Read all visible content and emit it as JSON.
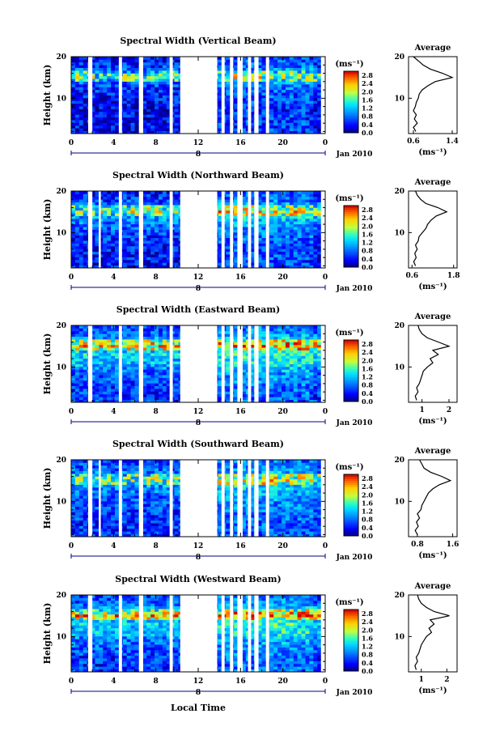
{
  "figure": {
    "date_label": "Jan 2010",
    "day_label": "8",
    "xlabel": "Local Time",
    "unit_label": "(ms⁻¹)",
    "panel_ylabel": "Height (km)",
    "avg_title": "Average",
    "avg_xlabel": "(ms⁻¹)"
  },
  "chart_data": [
    {
      "type": "heatmap",
      "title": "Spectral Width (Vertical Beam)",
      "ylabel": "Height (km)",
      "xlabel": "Local Time",
      "x_ticks": [
        "0",
        "4",
        "8",
        "12",
        "16",
        "20",
        "0"
      ],
      "x_range": [
        0,
        24
      ],
      "y_ticks": [
        "10",
        "20"
      ],
      "y_range": [
        1.5,
        20
      ],
      "colorbar": {
        "label": "(ms⁻¹)",
        "ticks": [
          "0.0",
          "0.4",
          "0.8",
          "1.2",
          "1.6",
          "2.0",
          "2.4",
          "2.8"
        ],
        "range": [
          0,
          3.0
        ]
      },
      "data_gaps_hours": [
        [
          1.6,
          2.0
        ],
        [
          4.5,
          4.8
        ],
        [
          6.4,
          6.8
        ],
        [
          9.3,
          9.6
        ],
        [
          10.3,
          13.8
        ],
        [
          14.2,
          14.5
        ],
        [
          15.0,
          15.3
        ],
        [
          15.7,
          16.2
        ],
        [
          16.7,
          17.0
        ],
        [
          17.3,
          17.7
        ],
        [
          18.4,
          18.7
        ],
        [
          23.6,
          24.0
        ]
      ],
      "average_profile": {
        "title": "Average",
        "xlabel": "(ms⁻¹)",
        "x_ticks": [
          "0.6",
          "1.4"
        ],
        "xlim": [
          0.5,
          1.5
        ],
        "height_km": [
          2,
          3,
          4,
          5,
          6,
          7,
          8,
          9,
          10,
          11,
          12,
          13,
          14,
          15,
          16,
          17,
          18,
          19,
          20
        ],
        "width_ms": [
          0.65,
          0.6,
          0.68,
          0.62,
          0.66,
          0.6,
          0.64,
          0.66,
          0.7,
          0.72,
          0.78,
          0.9,
          1.05,
          1.4,
          1.2,
          0.95,
          0.8,
          0.7,
          0.6
        ]
      }
    },
    {
      "type": "heatmap",
      "title": "Spectral Width (Northward Beam)",
      "ylabel": "Height (km)",
      "xlabel": "Local Time",
      "x_ticks": [
        "0",
        "4",
        "8",
        "12",
        "16",
        "20",
        "0"
      ],
      "x_range": [
        0,
        24
      ],
      "y_ticks": [
        "10",
        "20"
      ],
      "y_range": [
        1.5,
        20
      ],
      "colorbar": {
        "label": "(ms⁻¹)",
        "ticks": [
          "0.0",
          "0.4",
          "0.8",
          "1.2",
          "1.6",
          "2.0",
          "2.4",
          "2.8"
        ],
        "range": [
          0,
          3.0
        ]
      },
      "data_gaps_hours": [
        [
          1.6,
          2.0
        ],
        [
          2.6,
          2.8
        ],
        [
          4.5,
          4.8
        ],
        [
          6.4,
          6.8
        ],
        [
          9.3,
          9.6
        ],
        [
          10.3,
          13.8
        ],
        [
          14.2,
          14.5
        ],
        [
          15.0,
          15.3
        ],
        [
          15.7,
          16.2
        ],
        [
          16.7,
          17.0
        ],
        [
          17.3,
          17.7
        ],
        [
          18.4,
          18.7
        ],
        [
          23.6,
          24.0
        ]
      ],
      "average_profile": {
        "title": "Average",
        "xlabel": "(ms⁻¹)",
        "x_ticks": [
          "0.6",
          "1.8"
        ],
        "xlim": [
          0.5,
          1.9
        ],
        "height_km": [
          2,
          3,
          4,
          5,
          6,
          7,
          8,
          9,
          10,
          11,
          12,
          13,
          14,
          15,
          16,
          17,
          18,
          19,
          20
        ],
        "width_ms": [
          0.7,
          0.65,
          0.72,
          0.68,
          0.75,
          0.7,
          0.78,
          0.8,
          0.9,
          1.0,
          1.05,
          1.15,
          1.3,
          1.6,
          1.35,
          1.0,
          0.85,
          0.75,
          0.7
        ]
      }
    },
    {
      "type": "heatmap",
      "title": "Spectral Width (Eastward Beam)",
      "ylabel": "Height (km)",
      "xlabel": "Local Time",
      "x_ticks": [
        "0",
        "4",
        "8",
        "12",
        "16",
        "20",
        "0"
      ],
      "x_range": [
        0,
        24
      ],
      "y_ticks": [
        "10",
        "20"
      ],
      "y_range": [
        1.5,
        20
      ],
      "colorbar": {
        "label": "(ms⁻¹)",
        "ticks": [
          "0.0",
          "0.4",
          "0.8",
          "1.2",
          "1.6",
          "2.0",
          "2.4",
          "2.8"
        ],
        "range": [
          0,
          3.0
        ]
      },
      "data_gaps_hours": [
        [
          1.6,
          2.0
        ],
        [
          4.5,
          4.8
        ],
        [
          6.4,
          6.8
        ],
        [
          9.3,
          9.6
        ],
        [
          10.3,
          13.8
        ],
        [
          14.2,
          14.5
        ],
        [
          15.0,
          15.3
        ],
        [
          15.7,
          16.2
        ],
        [
          16.7,
          17.0
        ],
        [
          17.3,
          17.7
        ],
        [
          18.4,
          18.7
        ],
        [
          23.6,
          24.0
        ]
      ],
      "average_profile": {
        "title": "Average",
        "xlabel": "(ms⁻¹)",
        "x_ticks": [
          "1",
          "2"
        ],
        "xlim": [
          0.5,
          2.3
        ],
        "height_km": [
          2,
          3,
          4,
          5,
          6,
          7,
          8,
          9,
          10,
          11,
          12,
          13,
          14,
          15,
          16,
          17,
          18,
          19,
          20
        ],
        "width_ms": [
          0.8,
          0.75,
          0.85,
          0.8,
          0.9,
          0.95,
          1.0,
          1.05,
          1.2,
          1.4,
          1.3,
          1.6,
          1.4,
          2.0,
          1.6,
          1.2,
          1.0,
          0.9,
          0.85
        ]
      }
    },
    {
      "type": "heatmap",
      "title": "Spectral Width (Southward Beam)",
      "ylabel": "Height (km)",
      "xlabel": "Local Time",
      "x_ticks": [
        "0",
        "4",
        "8",
        "12",
        "16",
        "20",
        "0"
      ],
      "x_range": [
        0,
        24
      ],
      "y_ticks": [
        "10",
        "20"
      ],
      "y_range": [
        1.5,
        20
      ],
      "colorbar": {
        "label": "(ms⁻¹)",
        "ticks": [
          "0.0",
          "0.4",
          "0.8",
          "1.2",
          "1.6",
          "2.0",
          "2.4",
          "2.8"
        ],
        "range": [
          0,
          3.0
        ]
      },
      "data_gaps_hours": [
        [
          1.6,
          2.0
        ],
        [
          2.6,
          2.8
        ],
        [
          4.5,
          4.8
        ],
        [
          6.4,
          6.8
        ],
        [
          9.3,
          9.6
        ],
        [
          10.3,
          13.8
        ],
        [
          14.2,
          14.5
        ],
        [
          15.0,
          15.3
        ],
        [
          15.7,
          16.2
        ],
        [
          16.7,
          17.0
        ],
        [
          17.3,
          17.7
        ],
        [
          18.4,
          18.7
        ],
        [
          23.6,
          24.0
        ]
      ],
      "average_profile": {
        "title": "Average",
        "xlabel": "(ms⁻¹)",
        "x_ticks": [
          "0.8",
          "1.6"
        ],
        "xlim": [
          0.6,
          1.7
        ],
        "height_km": [
          2,
          3,
          4,
          5,
          6,
          7,
          8,
          9,
          10,
          11,
          12,
          13,
          14,
          15,
          16,
          17,
          18,
          19,
          20
        ],
        "width_ms": [
          0.8,
          0.75,
          0.82,
          0.78,
          0.85,
          0.8,
          0.88,
          0.9,
          0.95,
          1.0,
          1.05,
          1.15,
          1.3,
          1.55,
          1.35,
          1.1,
          0.95,
          0.9,
          0.85
        ]
      }
    },
    {
      "type": "heatmap",
      "title": "Spectral Width (Westward Beam)",
      "ylabel": "Height (km)",
      "xlabel": "Local Time",
      "x_ticks": [
        "0",
        "4",
        "8",
        "12",
        "16",
        "20",
        "0"
      ],
      "x_range": [
        0,
        24
      ],
      "y_ticks": [
        "10",
        "20"
      ],
      "y_range": [
        1.5,
        20
      ],
      "colorbar": {
        "label": "(ms⁻¹)",
        "ticks": [
          "0.0",
          "0.4",
          "0.8",
          "1.2",
          "1.6",
          "2.0",
          "2.4",
          "2.8"
        ],
        "range": [
          0,
          3.0
        ]
      },
      "data_gaps_hours": [
        [
          1.6,
          2.0
        ],
        [
          4.5,
          4.8
        ],
        [
          6.4,
          6.8
        ],
        [
          9.3,
          9.6
        ],
        [
          10.3,
          13.8
        ],
        [
          14.2,
          14.5
        ],
        [
          15.0,
          15.3
        ],
        [
          15.7,
          16.2
        ],
        [
          16.7,
          17.0
        ],
        [
          17.3,
          17.7
        ],
        [
          18.4,
          18.7
        ],
        [
          23.6,
          24.0
        ]
      ],
      "average_profile": {
        "title": "Average",
        "xlabel": "(ms⁻¹)",
        "x_ticks": [
          "1",
          "2"
        ],
        "xlim": [
          0.5,
          2.4
        ],
        "height_km": [
          2,
          3,
          4,
          5,
          6,
          7,
          8,
          9,
          10,
          11,
          12,
          13,
          14,
          15,
          16,
          17,
          18,
          19,
          20
        ],
        "width_ms": [
          0.8,
          0.75,
          0.85,
          0.8,
          0.9,
          0.95,
          1.0,
          1.1,
          1.2,
          1.4,
          1.3,
          1.5,
          1.35,
          2.1,
          1.5,
          1.2,
          1.0,
          0.9,
          0.85
        ]
      }
    }
  ]
}
